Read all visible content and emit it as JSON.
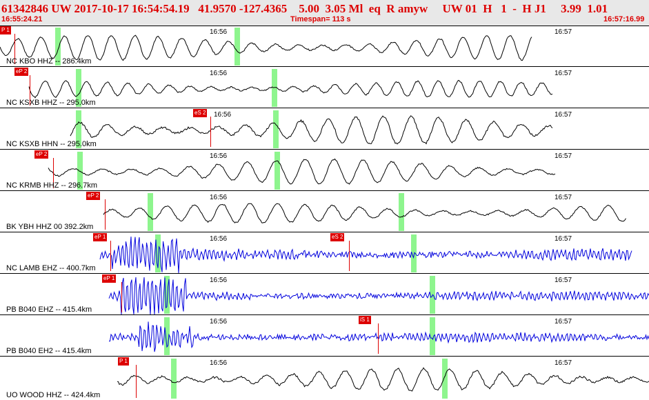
{
  "header": {
    "event_line": "61342846 UW 2017-10-17 16:54:54.19   41.9570 -127.4365    5.00  3.05 Ml  eq  R amyw     UW 01  H   1  -  H J1     3.99  1.01",
    "start_time": "16:55:24.21",
    "timespan": "Timespan= 113 s",
    "end_time": "16:57:16.99"
  },
  "colors": {
    "accent": "#dd0000",
    "trace_low": "#000000",
    "trace_high": "#0000dd",
    "window": "#8ef58e"
  },
  "time_marks": [
    "16:56",
    "16:57"
  ],
  "traces": [
    {
      "label": "NC KBO HHZ -- 286.4km",
      "picks": [
        {
          "text": "P 1"
        }
      ],
      "color": "black"
    },
    {
      "label": "NC KSXB HHZ -- 295.0km",
      "picks": [
        {
          "text": "eP 2"
        }
      ],
      "color": "black"
    },
    {
      "label": "NC KSXB HHN -- 295.0km",
      "picks": [
        {
          "text": "eS 2"
        }
      ],
      "color": "black"
    },
    {
      "label": "NC KRMB HHZ -- 296.7km",
      "picks": [
        {
          "text": "eP 2"
        }
      ],
      "color": "black"
    },
    {
      "label": "BK YBH HHZ 00 392.2km",
      "picks": [
        {
          "text": "eP 2"
        }
      ],
      "color": "black"
    },
    {
      "label": "NC LAMB EHZ -- 400.7km",
      "picks": [
        {
          "text": "eP 1"
        },
        {
          "text": "eS 2"
        }
      ],
      "color": "blue"
    },
    {
      "label": "PB B040 EHZ -- 415.4km",
      "picks": [
        {
          "text": "eP 1"
        }
      ],
      "color": "blue"
    },
    {
      "label": "PB B040 EH2 -- 415.4km",
      "picks": [
        {
          "text": "iS 1"
        }
      ],
      "color": "blue"
    },
    {
      "label": "UO WOOD HHZ -- 424.4km",
      "picks": [
        {
          "text": "P 1"
        }
      ],
      "color": "black"
    }
  ]
}
